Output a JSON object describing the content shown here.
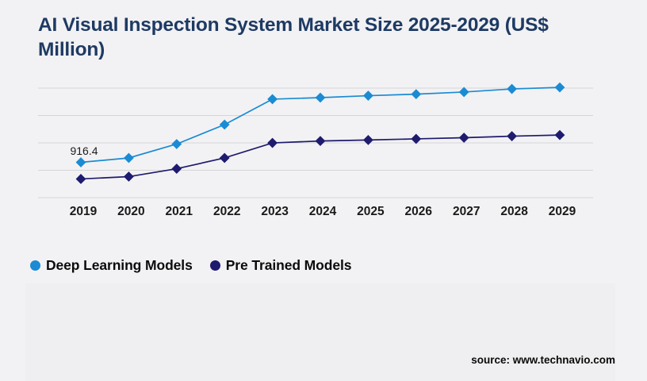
{
  "page": {
    "title": "AI Visual Inspection System Market Size 2025-2029 (US$ Million)",
    "source": "source: www.technavio.com"
  },
  "colors": {
    "background": "#f2f2f4",
    "footer_panel": "#efeff1",
    "title": "#1e3a63",
    "gridline": "#d5d5d8",
    "axis_label": "#1a1a1a",
    "annotation": "#1c1c1c",
    "deep_learning": "#1b8bd3",
    "pre_trained": "#1f1b6e"
  },
  "legend": [
    {
      "label": "Deep Learning Models",
      "color": "#1b8bd3"
    },
    {
      "label": "Pre Trained Models",
      "color": "#1f1b6e"
    }
  ],
  "chart_data": {
    "type": "line",
    "title": "AI Visual Inspection System Market Size 2025-2029 (US$ Million)",
    "xlabel": "",
    "ylabel": "US$ Million",
    "categories": [
      "2019",
      "2020",
      "2021",
      "2022",
      "2023",
      "2024",
      "2025",
      "2026",
      "2027",
      "2028",
      "2029"
    ],
    "series": [
      {
        "name": "Deep Learning Models",
        "color": "#1b8bd3",
        "marker": "diamond",
        "values": [
          916.4,
          1030,
          1390,
          1895,
          2555,
          2595,
          2645,
          2685,
          2740,
          2820,
          2860
        ]
      },
      {
        "name": "Pre Trained Models",
        "color": "#1f1b6e",
        "marker": "diamond",
        "values": [
          485,
          545,
          750,
          1030,
          1420,
          1470,
          1495,
          1525,
          1555,
          1595,
          1625
        ]
      }
    ],
    "annotation": {
      "series": "Deep Learning Models",
      "category": "2019",
      "text": "916.4"
    },
    "ylim": [
      0,
      3100
    ],
    "y_axis_labels_visible": false,
    "grid": "horizontal",
    "legend_position": "bottom-left"
  }
}
